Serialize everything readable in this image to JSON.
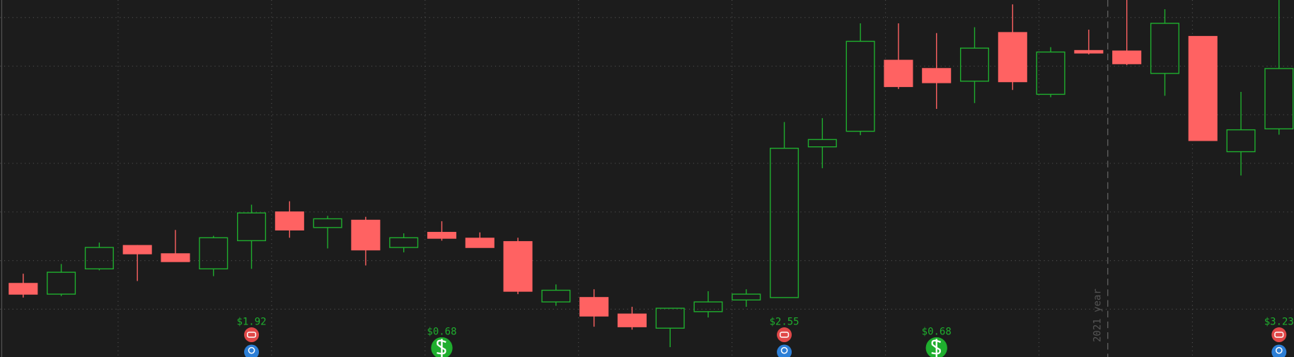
{
  "chart_data": {
    "type": "candlestick",
    "ylim": [
      0,
      7.36
    ],
    "grid": true,
    "up_color": "#1fae2e",
    "down_color": "#ff6262",
    "open": [
      1.53,
      1.31,
      1.83,
      2.31,
      2.14,
      1.83,
      2.41,
      3.0,
      2.68,
      2.83,
      2.27,
      2.58,
      2.46,
      2.39,
      1.15,
      1.24,
      0.9,
      0.61,
      0.95,
      1.19,
      1.24,
      4.34,
      4.66,
      6.12,
      5.95,
      5.69,
      6.69,
      5.42,
      6.32,
      6.31,
      5.85,
      6.61,
      4.24,
      4.71
    ],
    "high": [
      1.73,
      1.93,
      2.37,
      2.32,
      2.63,
      2.51,
      3.15,
      3.22,
      2.92,
      2.9,
      2.56,
      2.81,
      2.58,
      2.47,
      1.51,
      1.41,
      1.05,
      1.02,
      1.37,
      1.41,
      4.85,
      4.93,
      6.88,
      6.88,
      6.68,
      6.8,
      7.27,
      6.39,
      6.75,
      7.36,
      7.17,
      6.61,
      5.47,
      7.36
    ],
    "low": [
      1.24,
      1.27,
      1.8,
      1.58,
      1.98,
      1.68,
      1.83,
      2.47,
      2.25,
      1.9,
      2.17,
      2.41,
      2.27,
      1.31,
      1.07,
      0.64,
      0.58,
      0.22,
      0.83,
      1.05,
      1.24,
      3.9,
      4.58,
      5.53,
      5.12,
      5.24,
      5.51,
      5.36,
      6.24,
      6.02,
      5.39,
      4.47,
      3.75,
      4.59
    ],
    "close": [
      1.31,
      1.76,
      2.27,
      2.14,
      1.98,
      2.47,
      2.98,
      2.63,
      2.86,
      2.22,
      2.47,
      2.46,
      2.27,
      1.37,
      1.39,
      0.86,
      0.64,
      1.02,
      1.15,
      1.31,
      4.31,
      4.49,
      6.51,
      5.58,
      5.66,
      6.37,
      5.68,
      6.29,
      6.27,
      6.05,
      6.88,
      4.47,
      4.69,
      5.95
    ],
    "earnings": [
      null,
      null,
      null,
      null,
      null,
      null,
      "$1.92",
      null,
      null,
      null,
      null,
      null,
      null,
      null,
      null,
      null,
      null,
      null,
      null,
      null,
      "$2.55",
      null,
      null,
      null,
      null,
      null,
      null,
      null,
      null,
      null,
      null,
      null,
      null,
      "$3.23"
    ],
    "dividends": [
      null,
      null,
      null,
      null,
      null,
      null,
      null,
      null,
      null,
      null,
      null,
      "$0.68",
      null,
      null,
      null,
      null,
      null,
      null,
      null,
      null,
      null,
      null,
      null,
      null,
      "$0.68",
      null,
      null,
      null,
      null,
      null,
      null,
      null,
      null,
      null
    ],
    "period_breaks": [
      null,
      null,
      null,
      null,
      null,
      null,
      null,
      null,
      null,
      null,
      null,
      null,
      null,
      null,
      null,
      null,
      null,
      null,
      null,
      null,
      null,
      null,
      null,
      null,
      null,
      null,
      null,
      null,
      null,
      "2021 year",
      null,
      null,
      null,
      null
    ]
  }
}
